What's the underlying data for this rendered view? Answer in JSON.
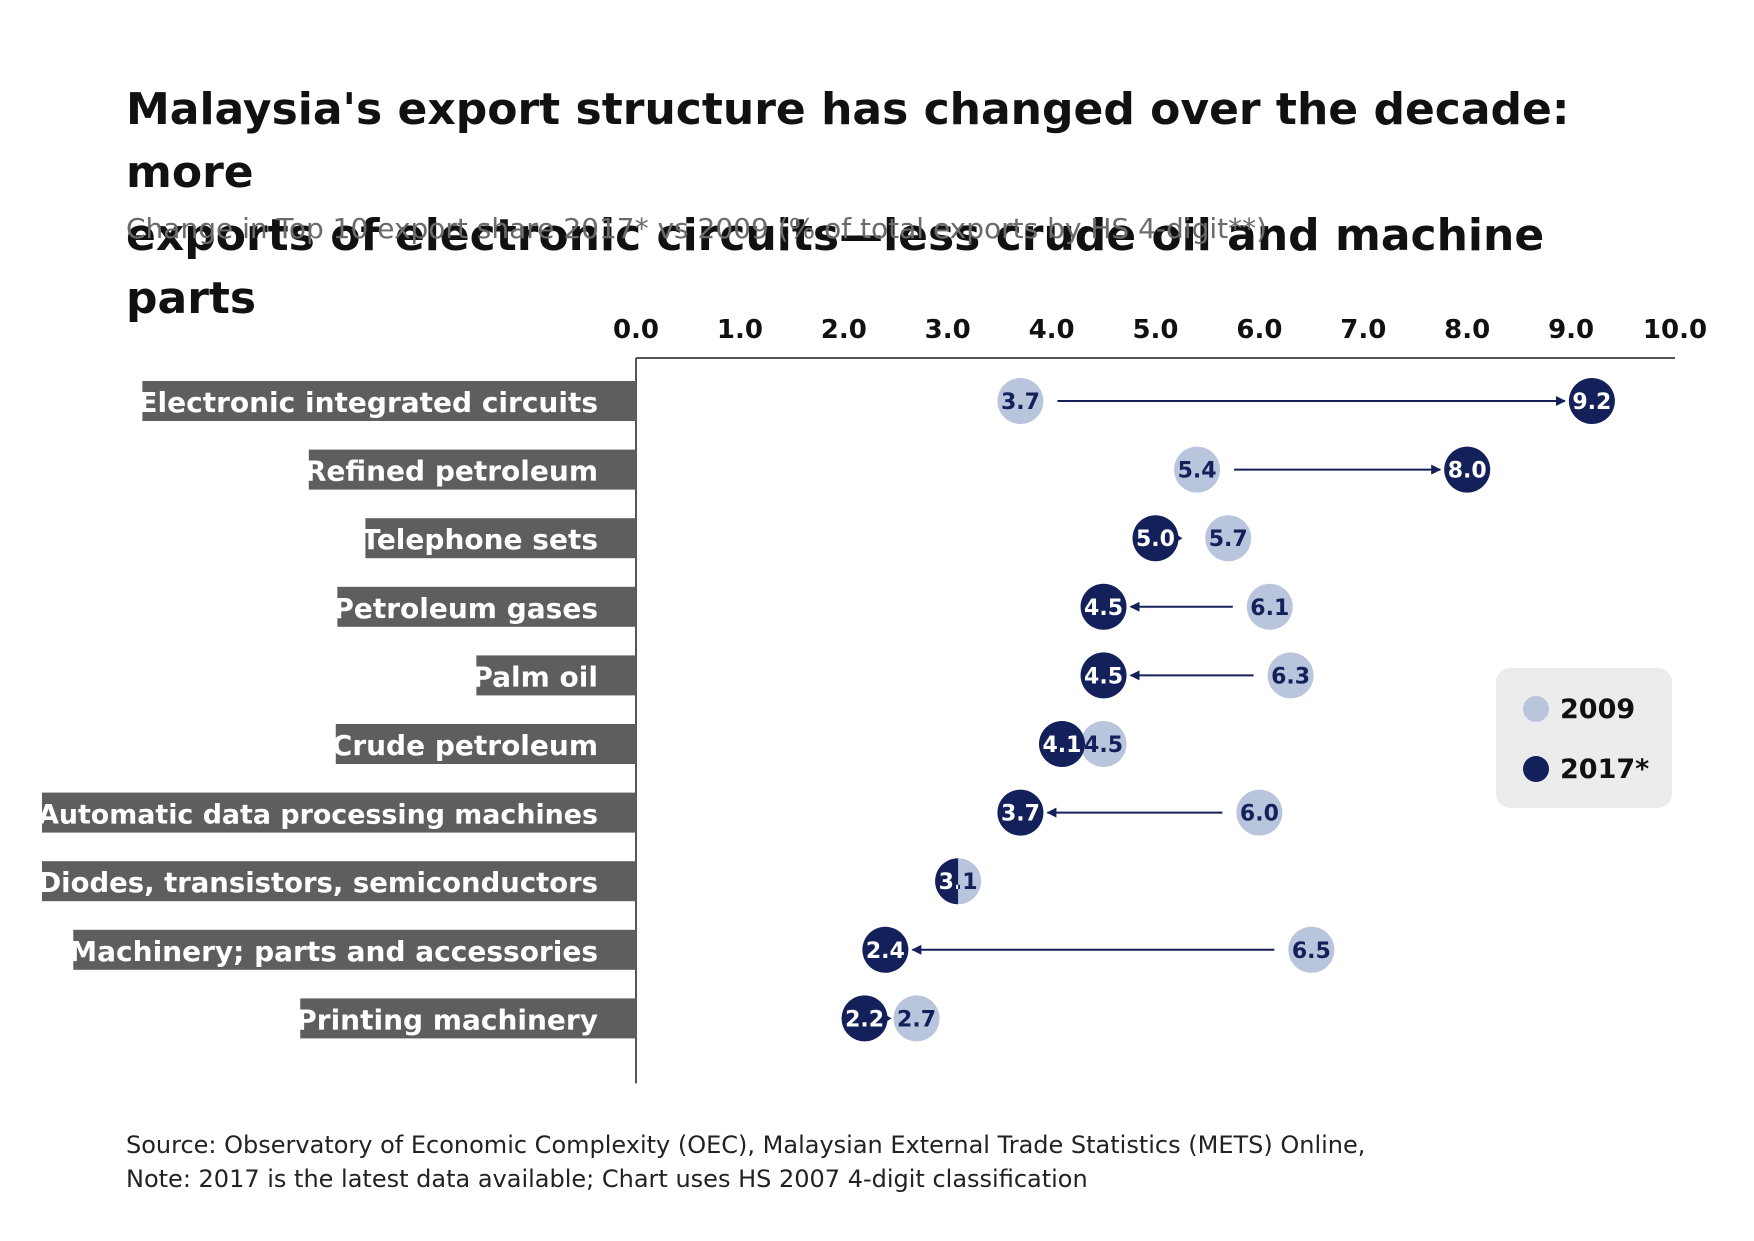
{
  "header": {
    "title_line1": "Malaysia's export structure has changed over the decade: more",
    "title_line2": "exports of electronic circuits—less crude oil and machine parts",
    "subtitle": "Change in Top 10 export share 2017* vs 2009 (% of total exports by HS 4-digit**)"
  },
  "footer": {
    "source": "Source: Observatory of Economic Complexity (OEC), Malaysian External Trade Statistics (METS) Online,",
    "note": "Note: 2017 is the latest data available; Chart uses HS 2007 4-digit classification"
  },
  "colors": {
    "series_2009": "#b8c5dc",
    "series_2017": "#14205a",
    "label_bar": "#5e5e5e",
    "legend_bg": "#ececec"
  },
  "chart_data": {
    "type": "dumbbell",
    "xlim": [
      0,
      10
    ],
    "x_ticks": [
      "0.0",
      "1.0",
      "2.0",
      "3.0",
      "4.0",
      "5.0",
      "6.0",
      "7.0",
      "8.0",
      "9.0",
      "10.0"
    ],
    "legend": {
      "placement": "right",
      "entries": [
        "2009",
        "2017*"
      ]
    },
    "series": [
      {
        "name": "2009",
        "key": "v2009"
      },
      {
        "name": "2017*",
        "key": "v2017"
      }
    ],
    "rows": [
      {
        "category": "Electronic integrated circuits",
        "v2009": 3.7,
        "v2017": 9.2,
        "label_2009": "3.7",
        "label_2017": "9.2"
      },
      {
        "category": "Refined petroleum",
        "v2009": 5.4,
        "v2017": 8.0,
        "label_2009": "5.4",
        "label_2017": "8.0"
      },
      {
        "category": "Telephone sets",
        "v2009": 5.7,
        "v2017": 5.0,
        "label_2009": "5.7",
        "label_2017": "5.0"
      },
      {
        "category": "Petroleum gases",
        "v2009": 6.1,
        "v2017": 4.5,
        "label_2009": "6.1",
        "label_2017": "4.5"
      },
      {
        "category": "Palm oil",
        "v2009": 6.3,
        "v2017": 4.5,
        "label_2009": "6.3",
        "label_2017": "4.5"
      },
      {
        "category": "Crude petroleum",
        "v2009": 4.5,
        "v2017": 4.1,
        "label_2009": "4.5",
        "label_2017": "4.1"
      },
      {
        "category": "Automatic data processing machines",
        "v2009": 6.0,
        "v2017": 3.7,
        "label_2009": "6.0",
        "label_2017": "3.7"
      },
      {
        "category": "Diodes, transistors, semiconductors",
        "v2009": 3.1,
        "v2017": 3.1,
        "label_2009": "3.1",
        "label_2017": "3.1"
      },
      {
        "category": "Machinery; parts and accessories",
        "v2009": 6.5,
        "v2017": 2.4,
        "label_2009": "6.5",
        "label_2017": "2.4"
      },
      {
        "category": "Printing machinery",
        "v2009": 2.7,
        "v2017": 2.2,
        "label_2009": "2.7",
        "label_2017": "2.2"
      }
    ]
  }
}
